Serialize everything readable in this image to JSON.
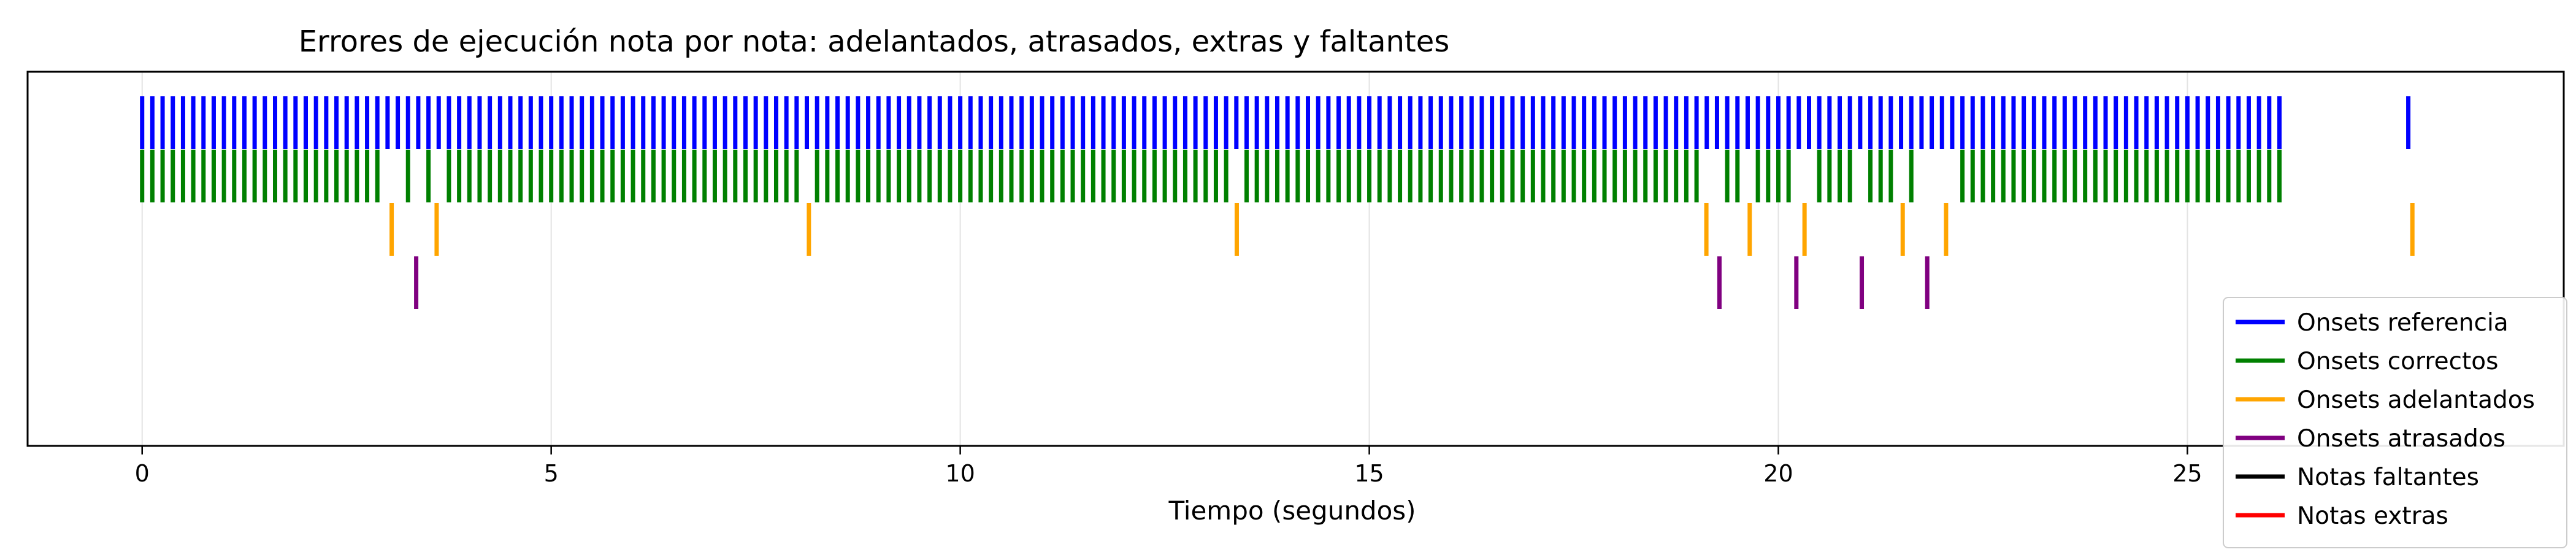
{
  "chart_data": {
    "type": "event-raster",
    "title": "Errores de ejecución nota por nota: adelantados, atrasados, extras y faltantes",
    "xlabel": "Tiempo (segundos)",
    "ylabel": "",
    "xlim": [
      -1.4,
      29.6
    ],
    "x_ticks": [
      0,
      5,
      10,
      15,
      20,
      25
    ],
    "x_tick_labels": [
      "0",
      "5",
      "10",
      "15",
      "20",
      "25"
    ],
    "grid": "vertical",
    "legend_position": "bottom-right",
    "reference_onsets": {
      "regular": {
        "start": 0.0,
        "step": 0.125,
        "count": 210
      },
      "extra": [
        27.7
      ]
    },
    "series": [
      {
        "name": "Onsets referencia",
        "color": "#0000ff",
        "row": 0
      },
      {
        "name": "Onsets correctos",
        "color": "#008000",
        "row": 1
      },
      {
        "name": "Onsets adelantados",
        "color": "#ffa500",
        "row": 2,
        "x": [
          3.05,
          3.6,
          8.15,
          13.38,
          19.12,
          19.65,
          20.32,
          21.52,
          22.05,
          27.75
        ]
      },
      {
        "name": "Onsets atrasados",
        "color": "#800080",
        "row": 3,
        "x": [
          3.35,
          19.28,
          20.22,
          21.02,
          21.82
        ]
      },
      {
        "name": "Notas faltantes",
        "color": "#000000",
        "row": 4,
        "x": []
      },
      {
        "name": "Notas extras",
        "color": "#ff0000",
        "row": 5,
        "x": []
      }
    ]
  }
}
